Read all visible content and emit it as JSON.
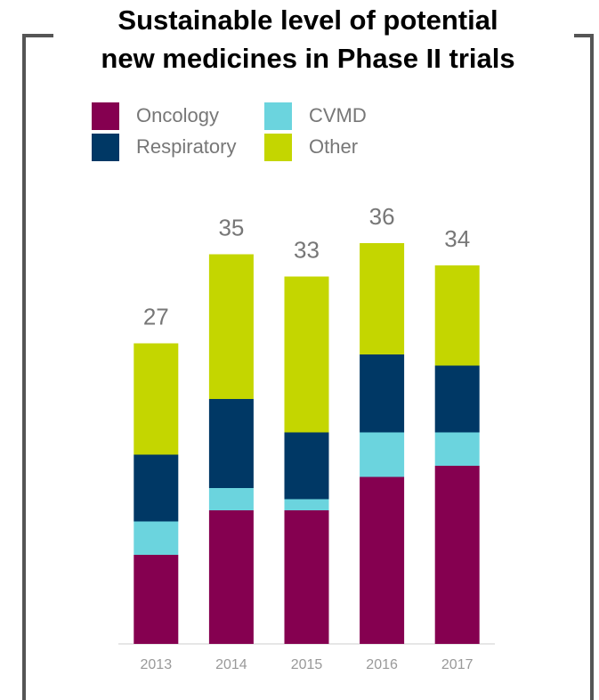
{
  "chart_data": {
    "type": "stacked_bar",
    "title": [
      "Sustainable level of potential",
      "new medicines in Phase II trials"
    ],
    "categories": [
      "2013",
      "2014",
      "2015",
      "2016",
      "2017"
    ],
    "series": [
      {
        "name": "Oncology",
        "color": "#850050",
        "values": [
          8,
          12,
          12,
          15,
          16
        ]
      },
      {
        "name": "CVMD",
        "color": "#6bd4de",
        "values": [
          3,
          2,
          1,
          4,
          3
        ]
      },
      {
        "name": "Respiratory",
        "color": "#003865",
        "values": [
          6,
          8,
          6,
          7,
          6
        ]
      },
      {
        "name": "Other",
        "color": "#c4d600",
        "values": [
          10,
          13,
          14,
          10,
          9
        ]
      }
    ],
    "totals": [
      27,
      35,
      33,
      36,
      34
    ],
    "ylim": [
      0,
      40
    ]
  }
}
